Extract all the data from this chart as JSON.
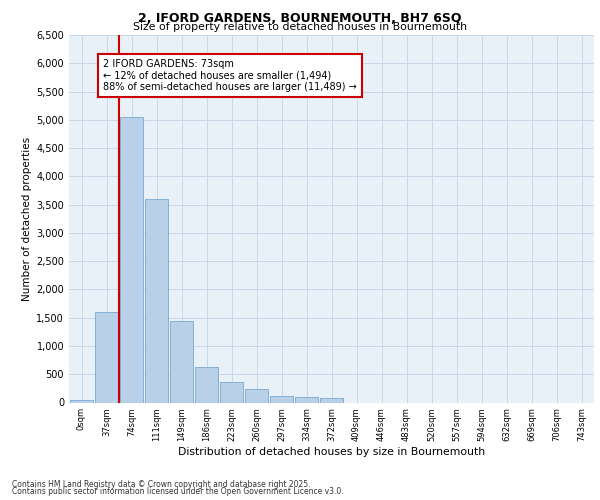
{
  "title_line1": "2, IFORD GARDENS, BOURNEMOUTH, BH7 6SQ",
  "title_line2": "Size of property relative to detached houses in Bournemouth",
  "xlabel": "Distribution of detached houses by size in Bournemouth",
  "ylabel": "Number of detached properties",
  "bar_color": "#b8d0e8",
  "bar_edge_color": "#7aaad0",
  "background_color": "#e8f0f8",
  "annotation_text": "2 IFORD GARDENS: 73sqm\n← 12% of detached houses are smaller (1,494)\n88% of semi-detached houses are larger (11,489) →",
  "vline_color": "#cc0000",
  "categories": [
    "0sqm",
    "37sqm",
    "74sqm",
    "111sqm",
    "149sqm",
    "186sqm",
    "223sqm",
    "260sqm",
    "297sqm",
    "334sqm",
    "372sqm",
    "409sqm",
    "446sqm",
    "483sqm",
    "520sqm",
    "557sqm",
    "594sqm",
    "632sqm",
    "669sqm",
    "706sqm",
    "743sqm"
  ],
  "values": [
    50,
    1600,
    5050,
    3600,
    1450,
    620,
    360,
    230,
    120,
    100,
    80,
    0,
    0,
    0,
    0,
    0,
    0,
    0,
    0,
    0,
    0
  ],
  "ylim": [
    0,
    6500
  ],
  "yticks": [
    0,
    500,
    1000,
    1500,
    2000,
    2500,
    3000,
    3500,
    4000,
    4500,
    5000,
    5500,
    6000,
    6500
  ],
  "footer_line1": "Contains HM Land Registry data © Crown copyright and database right 2025.",
  "footer_line2": "Contains public sector information licensed under the Open Government Licence v3.0.",
  "grid_color": "#c5d8ea",
  "property_bin_index": 2
}
